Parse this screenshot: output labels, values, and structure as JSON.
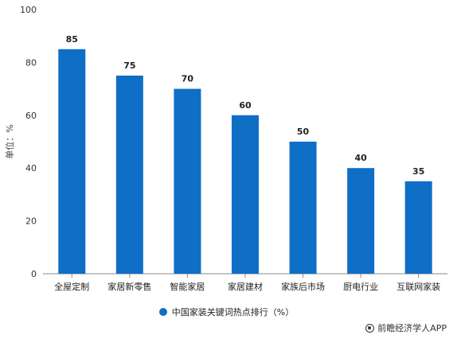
{
  "colors": {
    "bar": "#0f6fc6",
    "grid": "#d9d9d9",
    "axis": "#888888"
  },
  "chart_data": {
    "type": "bar",
    "categories": [
      "全屋定制",
      "家居新零售",
      "智能家居",
      "家居建材",
      "家族后市场",
      "厨电行业",
      "互联网家装"
    ],
    "series": [
      {
        "name": "中国家装关键词热点排行（%）",
        "values": [
          85,
          75,
          70,
          60,
          50,
          40,
          35
        ]
      }
    ],
    "ylabel": "单位：%",
    "xlabel": "",
    "ylim": [
      0,
      100
    ],
    "yticks": [
      0,
      20,
      40,
      60,
      80,
      100
    ],
    "grid": false,
    "legend_position": "bottom"
  },
  "credit": {
    "text": "前瞻经济学人APP"
  }
}
